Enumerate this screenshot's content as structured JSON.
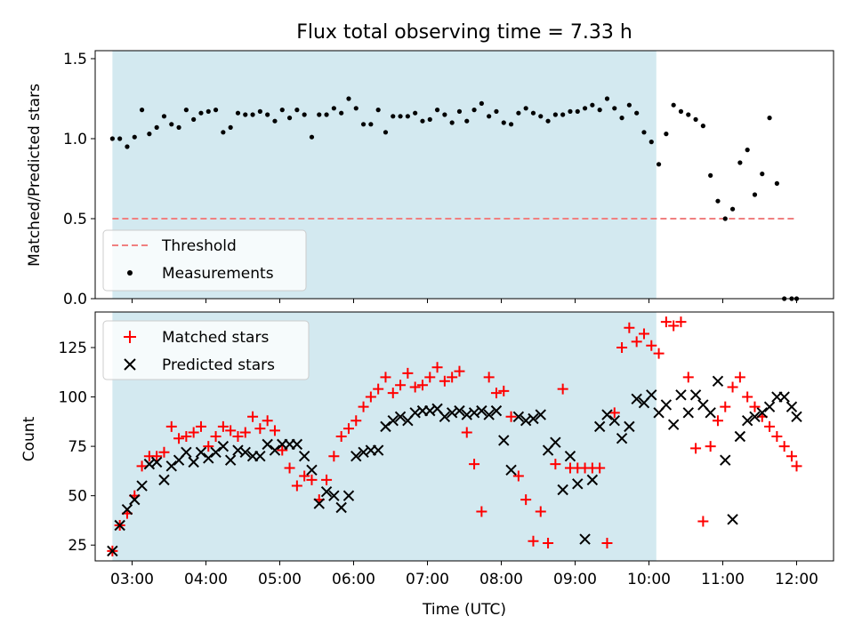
{
  "chart_data": [
    {
      "type": "scatter",
      "title": "Flux total observing time = 7.33 h",
      "xlabel": "",
      "ylabel": "Matched/Predicted stars",
      "xlim": [
        "02:30",
        "12:30"
      ],
      "ylim": [
        0.0,
        1.55
      ],
      "yticks": [
        "0.0",
        "0.5",
        "1.0",
        "1.5"
      ],
      "shaded_span": {
        "start": "02:44",
        "end": "10:06",
        "color": "#d3e9f0"
      },
      "threshold": {
        "name": "Threshold",
        "value": 0.5,
        "from": "02:44",
        "to": "12:00",
        "color": "#f08080"
      },
      "legend": {
        "position": "lower left",
        "entries": [
          "Threshold",
          "Measurements"
        ]
      },
      "series": [
        {
          "name": "Measurements",
          "color": "#000000",
          "x": [
            "02:44",
            "02:50",
            "02:56",
            "03:02",
            "03:08",
            "03:14",
            "03:20",
            "03:26",
            "03:32",
            "03:38",
            "03:44",
            "03:50",
            "03:56",
            "04:02",
            "04:08",
            "04:14",
            "04:20",
            "04:26",
            "04:32",
            "04:38",
            "04:44",
            "04:50",
            "04:56",
            "05:02",
            "05:08",
            "05:14",
            "05:20",
            "05:26",
            "05:32",
            "05:38",
            "05:44",
            "05:50",
            "05:56",
            "06:02",
            "06:08",
            "06:14",
            "06:20",
            "06:26",
            "06:32",
            "06:38",
            "06:44",
            "06:50",
            "06:56",
            "07:02",
            "07:08",
            "07:14",
            "07:20",
            "07:26",
            "07:32",
            "07:38",
            "07:44",
            "07:50",
            "07:56",
            "08:02",
            "08:08",
            "08:14",
            "08:20",
            "08:26",
            "08:32",
            "08:38",
            "08:44",
            "08:50",
            "08:56",
            "09:02",
            "09:08",
            "09:14",
            "09:20",
            "09:26",
            "09:32",
            "09:38",
            "09:44",
            "09:50",
            "09:56",
            "10:02",
            "10:08",
            "10:14",
            "10:20",
            "10:26",
            "10:32",
            "10:38",
            "10:44",
            "10:50",
            "10:56",
            "11:02",
            "11:08",
            "11:14",
            "11:20",
            "11:26",
            "11:32",
            "11:38",
            "11:44",
            "11:50",
            "11:56",
            "12:00"
          ],
          "y": [
            1.0,
            1.0,
            0.95,
            1.01,
            1.18,
            1.03,
            1.07,
            1.14,
            1.09,
            1.07,
            1.18,
            1.12,
            1.16,
            1.17,
            1.18,
            1.04,
            1.07,
            1.16,
            1.15,
            1.15,
            1.17,
            1.15,
            1.11,
            1.18,
            1.13,
            1.18,
            1.15,
            1.01,
            1.15,
            1.15,
            1.19,
            1.16,
            1.25,
            1.19,
            1.09,
            1.09,
            1.18,
            1.04,
            1.14,
            1.14,
            1.14,
            1.16,
            1.11,
            1.12,
            1.18,
            1.15,
            1.1,
            1.17,
            1.11,
            1.18,
            1.22,
            1.14,
            1.17,
            1.1,
            1.09,
            1.16,
            1.19,
            1.16,
            1.14,
            1.11,
            1.15,
            1.15,
            1.17,
            1.17,
            1.19,
            1.21,
            1.18,
            1.25,
            1.19,
            1.13,
            1.21,
            1.16,
            1.04,
            0.98,
            0.84,
            1.03,
            1.21,
            1.17,
            1.15,
            1.12,
            1.08,
            0.77,
            0.61,
            0.5,
            0.56,
            0.85,
            0.93,
            0.65,
            0.78,
            1.13,
            0.72,
            0.0,
            0.0,
            0.0
          ]
        }
      ]
    },
    {
      "type": "scatter",
      "title": "",
      "xlabel": "Time (UTC)",
      "ylabel": "Count",
      "xlim": [
        "02:30",
        "12:30"
      ],
      "ylim": [
        17,
        143
      ],
      "yticks": [
        "25",
        "50",
        "75",
        "100",
        "125"
      ],
      "xticks": [
        "03:00",
        "04:00",
        "05:00",
        "06:00",
        "07:00",
        "08:00",
        "09:00",
        "10:00",
        "11:00",
        "12:00"
      ],
      "shaded_span": {
        "start": "02:44",
        "end": "10:06",
        "color": "#d3e9f0"
      },
      "legend": {
        "position": "upper left",
        "entries": [
          "Matched stars",
          "Predicted stars"
        ]
      },
      "series": [
        {
          "name": "Matched stars",
          "marker": "+",
          "color": "#ff0000",
          "x": [
            "02:44",
            "02:50",
            "02:56",
            "03:02",
            "03:08",
            "03:14",
            "03:20",
            "03:26",
            "03:32",
            "03:38",
            "03:44",
            "03:50",
            "03:56",
            "04:02",
            "04:08",
            "04:14",
            "04:20",
            "04:26",
            "04:32",
            "04:38",
            "04:44",
            "04:50",
            "04:56",
            "05:02",
            "05:08",
            "05:14",
            "05:20",
            "05:26",
            "05:32",
            "05:38",
            "05:44",
            "05:50",
            "05:56",
            "06:02",
            "06:08",
            "06:14",
            "06:20",
            "06:26",
            "06:32",
            "06:38",
            "06:44",
            "06:50",
            "06:56",
            "07:02",
            "07:08",
            "07:14",
            "07:20",
            "07:26",
            "07:32",
            "07:38",
            "07:44",
            "07:50",
            "07:56",
            "08:02",
            "08:08",
            "08:14",
            "08:20",
            "08:26",
            "08:32",
            "08:38",
            "08:44",
            "08:50",
            "08:56",
            "09:02",
            "09:08",
            "09:14",
            "09:20",
            "09:26",
            "09:32",
            "09:38",
            "09:44",
            "09:50",
            "09:56",
            "10:02",
            "10:08",
            "10:14",
            "10:20",
            "10:26",
            "10:32",
            "10:38",
            "10:44",
            "10:50",
            "10:56",
            "11:02",
            "11:08",
            "11:14",
            "11:20",
            "11:26",
            "11:32",
            "11:38",
            "11:44",
            "11:50",
            "11:56",
            "12:00"
          ],
          "y": [
            22,
            35,
            41,
            50,
            65,
            70,
            70,
            72,
            85,
            79,
            80,
            82,
            85,
            75,
            80,
            85,
            83,
            80,
            82,
            90,
            84,
            88,
            83,
            73,
            64,
            55,
            60,
            58,
            48,
            58,
            70,
            80,
            84,
            88,
            95,
            100,
            104,
            110,
            102,
            106,
            112,
            105,
            106,
            110,
            115,
            108,
            110,
            113,
            82,
            66,
            42,
            110,
            102,
            103,
            90,
            60,
            48,
            27,
            42,
            26,
            66,
            104,
            64,
            64,
            64,
            64,
            64,
            26,
            92,
            125,
            135,
            128,
            132,
            126,
            122,
            138,
            136,
            138,
            110,
            74,
            37,
            75,
            88,
            95,
            105,
            110,
            100,
            95,
            90,
            85,
            80,
            75,
            70,
            65
          ]
        },
        {
          "name": "Predicted stars",
          "marker": "x",
          "color": "#000000",
          "x": [
            "02:44",
            "02:50",
            "02:56",
            "03:02",
            "03:08",
            "03:14",
            "03:20",
            "03:26",
            "03:32",
            "03:38",
            "03:44",
            "03:50",
            "03:56",
            "04:02",
            "04:08",
            "04:14",
            "04:20",
            "04:26",
            "04:32",
            "04:38",
            "04:44",
            "04:50",
            "04:56",
            "05:02",
            "05:08",
            "05:14",
            "05:20",
            "05:26",
            "05:32",
            "05:38",
            "05:44",
            "05:50",
            "05:56",
            "06:02",
            "06:08",
            "06:14",
            "06:20",
            "06:26",
            "06:32",
            "06:38",
            "06:44",
            "06:50",
            "06:56",
            "07:02",
            "07:08",
            "07:14",
            "07:20",
            "07:26",
            "07:32",
            "07:38",
            "07:44",
            "07:50",
            "07:56",
            "08:02",
            "08:08",
            "08:14",
            "08:20",
            "08:26",
            "08:32",
            "08:38",
            "08:44",
            "08:50",
            "08:56",
            "09:02",
            "09:08",
            "09:14",
            "09:20",
            "09:26",
            "09:32",
            "09:38",
            "09:44",
            "09:50",
            "09:56",
            "10:02",
            "10:08",
            "10:14",
            "10:20",
            "10:26",
            "10:32",
            "10:38",
            "10:44",
            "10:50",
            "10:56",
            "11:02",
            "11:08",
            "11:14",
            "11:20",
            "11:26",
            "11:32",
            "11:38",
            "11:44",
            "11:50",
            "11:56",
            "12:00"
          ],
          "y": [
            22,
            35,
            43,
            48,
            55,
            66,
            67,
            58,
            65,
            68,
            72,
            67,
            72,
            69,
            72,
            75,
            68,
            73,
            72,
            70,
            70,
            76,
            73,
            76,
            76,
            76,
            70,
            63,
            46,
            52,
            50,
            44,
            50,
            70,
            72,
            73,
            73,
            85,
            88,
            90,
            88,
            92,
            93,
            93,
            94,
            90,
            92,
            93,
            91,
            92,
            93,
            91,
            93,
            78,
            63,
            90,
            88,
            89,
            91,
            73,
            77,
            53,
            70,
            56,
            28,
            58,
            85,
            91,
            88,
            79,
            85,
            99,
            97,
            101,
            92,
            96,
            86,
            101,
            92,
            101,
            96,
            92,
            108,
            68,
            38,
            80,
            88,
            90,
            92,
            95,
            100,
            100,
            95,
            90
          ]
        }
      ]
    }
  ]
}
